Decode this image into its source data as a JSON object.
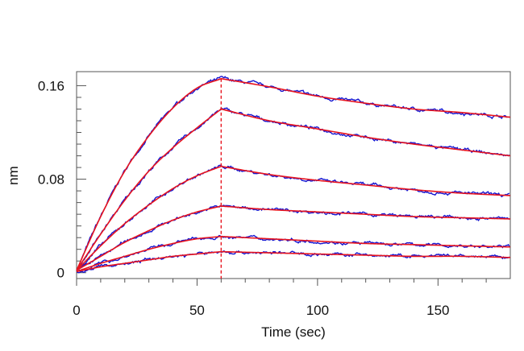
{
  "chart_data": {
    "type": "line",
    "title": "",
    "xlabel": "Time (sec)",
    "ylabel": "nm",
    "xlim": [
      0,
      180
    ],
    "ylim": [
      -0.005,
      0.172
    ],
    "x_ticks": [
      0,
      50,
      100,
      150
    ],
    "y_ticks": [
      0,
      0.08,
      0.16
    ],
    "x_tick_labels": [
      "0",
      "50",
      "100",
      "150"
    ],
    "y_tick_labels": [
      "0",
      "0.08",
      "0.16"
    ],
    "grid": false,
    "legend": "none",
    "association_end_x": 60,
    "colors": {
      "measured": "#1515d0",
      "fit": "#e8141e",
      "axis": "#555555"
    },
    "series": [
      {
        "values": [
          {
            "x": 0,
            "y": 0.002
          },
          {
            "x": 10,
            "y": 0.048
          },
          {
            "x": 20,
            "y": 0.087
          },
          {
            "x": 30,
            "y": 0.117
          },
          {
            "x": 40,
            "y": 0.141
          },
          {
            "x": 50,
            "y": 0.158
          },
          {
            "x": 60,
            "y": 0.166
          },
          {
            "x": 80,
            "y": 0.159
          },
          {
            "x": 100,
            "y": 0.151
          },
          {
            "x": 120,
            "y": 0.145
          },
          {
            "x": 140,
            "y": 0.14
          },
          {
            "x": 160,
            "y": 0.137
          },
          {
            "x": 180,
            "y": 0.133
          }
        ]
      },
      {
        "values": [
          {
            "x": 0,
            "y": 0.002
          },
          {
            "x": 10,
            "y": 0.033
          },
          {
            "x": 20,
            "y": 0.062
          },
          {
            "x": 30,
            "y": 0.087
          },
          {
            "x": 40,
            "y": 0.107
          },
          {
            "x": 50,
            "y": 0.124
          },
          {
            "x": 60,
            "y": 0.14
          },
          {
            "x": 80,
            "y": 0.13
          },
          {
            "x": 100,
            "y": 0.123
          },
          {
            "x": 120,
            "y": 0.116
          },
          {
            "x": 140,
            "y": 0.11
          },
          {
            "x": 160,
            "y": 0.105
          },
          {
            "x": 180,
            "y": 0.1
          }
        ]
      },
      {
        "values": [
          {
            "x": 0,
            "y": 0.002
          },
          {
            "x": 10,
            "y": 0.023
          },
          {
            "x": 20,
            "y": 0.042
          },
          {
            "x": 30,
            "y": 0.058
          },
          {
            "x": 40,
            "y": 0.072
          },
          {
            "x": 50,
            "y": 0.083
          },
          {
            "x": 60,
            "y": 0.091
          },
          {
            "x": 80,
            "y": 0.084
          },
          {
            "x": 100,
            "y": 0.079
          },
          {
            "x": 120,
            "y": 0.075
          },
          {
            "x": 140,
            "y": 0.071
          },
          {
            "x": 160,
            "y": 0.068
          },
          {
            "x": 180,
            "y": 0.066
          }
        ]
      },
      {
        "values": [
          {
            "x": 0,
            "y": 0.002
          },
          {
            "x": 10,
            "y": 0.014
          },
          {
            "x": 20,
            "y": 0.026
          },
          {
            "x": 30,
            "y": 0.036
          },
          {
            "x": 40,
            "y": 0.045
          },
          {
            "x": 50,
            "y": 0.052
          },
          {
            "x": 60,
            "y": 0.057
          },
          {
            "x": 80,
            "y": 0.054
          },
          {
            "x": 100,
            "y": 0.052
          },
          {
            "x": 120,
            "y": 0.05
          },
          {
            "x": 140,
            "y": 0.048
          },
          {
            "x": 160,
            "y": 0.047
          },
          {
            "x": 180,
            "y": 0.046
          }
        ]
      },
      {
        "values": [
          {
            "x": 0,
            "y": 0.001
          },
          {
            "x": 10,
            "y": 0.008
          },
          {
            "x": 20,
            "y": 0.014
          },
          {
            "x": 30,
            "y": 0.02
          },
          {
            "x": 40,
            "y": 0.025
          },
          {
            "x": 50,
            "y": 0.029
          },
          {
            "x": 60,
            "y": 0.031
          },
          {
            "x": 80,
            "y": 0.029
          },
          {
            "x": 100,
            "y": 0.027
          },
          {
            "x": 120,
            "y": 0.025
          },
          {
            "x": 140,
            "y": 0.024
          },
          {
            "x": 160,
            "y": 0.023
          },
          {
            "x": 180,
            "y": 0.022
          }
        ]
      },
      {
        "values": [
          {
            "x": 0,
            "y": 0.001
          },
          {
            "x": 10,
            "y": 0.005
          },
          {
            "x": 20,
            "y": 0.008
          },
          {
            "x": 30,
            "y": 0.011
          },
          {
            "x": 40,
            "y": 0.014
          },
          {
            "x": 50,
            "y": 0.016
          },
          {
            "x": 60,
            "y": 0.018
          },
          {
            "x": 80,
            "y": 0.017
          },
          {
            "x": 100,
            "y": 0.016
          },
          {
            "x": 120,
            "y": 0.015
          },
          {
            "x": 140,
            "y": 0.014
          },
          {
            "x": 160,
            "y": 0.014
          },
          {
            "x": 180,
            "y": 0.013
          }
        ]
      }
    ]
  }
}
